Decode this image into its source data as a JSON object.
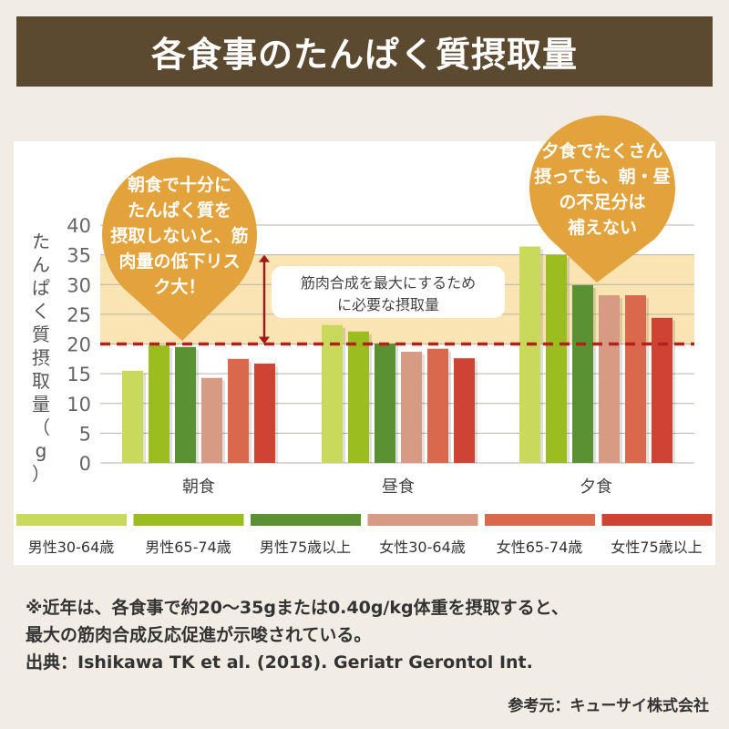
{
  "title": "各食事のたんぱく質摂取量",
  "chart_data": {
    "type": "bar",
    "title": "",
    "ylabel": "たんぱく質摂取量（g）",
    "xlabel": "",
    "ylim": [
      0,
      40
    ],
    "yticks": [
      0,
      5,
      10,
      15,
      20,
      25,
      30,
      35,
      40
    ],
    "grid": true,
    "legend_position": "bottom",
    "categories": [
      "朝食",
      "昼食",
      "夕食"
    ],
    "series": [
      {
        "name": "男性30-64歳",
        "color": "#c9d95b",
        "values": [
          15.5,
          23.2,
          36.4
        ]
      },
      {
        "name": "男性65-74歳",
        "color": "#9bbd1f",
        "values": [
          19.8,
          22.1,
          35.0
        ]
      },
      {
        "name": "男性75歳以上",
        "color": "#5a9233",
        "values": [
          19.5,
          20.1,
          29.9
        ]
      },
      {
        "name": "女性30-64歳",
        "color": "#d69b82",
        "values": [
          14.3,
          18.7,
          28.2
        ]
      },
      {
        "name": "女性65-74歳",
        "color": "#d9684c",
        "values": [
          17.5,
          19.2,
          28.2
        ]
      },
      {
        "name": "女性75歳以上",
        "color": "#cf4332",
        "values": [
          16.7,
          17.6,
          24.4
        ]
      }
    ],
    "reference_band": [
      20,
      35
    ],
    "reference_line": 20,
    "band_label": "筋肉合成を最大にするために必要な摂取量",
    "annotations": [
      "朝食で十分にたんぱく質を摂取しないと、筋肉量の低下リスク大！",
      "夕食でたくさん摂っても、朝・昼の不足分は補えない"
    ]
  },
  "footnote": [
    "※近年は、各食事で約20～35gまたは0.40g/kg体重を摂取すると、",
    "最大の筋肉合成反応促進が示唆されている。",
    "出典：Ishikawa TK et al. (2018). Geriatr Gerontol Int."
  ],
  "credit": "参考元：キューサイ株式会社"
}
